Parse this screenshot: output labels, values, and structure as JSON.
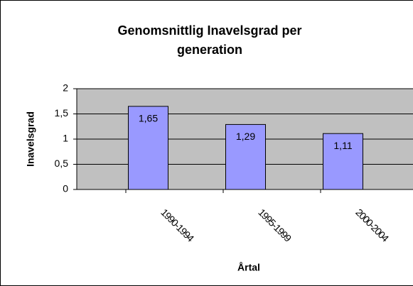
{
  "chart_data": {
    "type": "bar",
    "title": "Genomsnittlig Inavelsgrad per generation",
    "x_label": "Årtal",
    "y_label": "Inavelsgrad",
    "categories": [
      "1990-1994",
      "1995-1999",
      "2000-2004"
    ],
    "values": [
      1.65,
      1.29,
      1.11
    ],
    "value_labels": [
      "1,65",
      "1,29",
      "1,11"
    ],
    "color": "#9999ff",
    "ylim": [
      0,
      2
    ],
    "yticks": [
      0,
      {
        "value": 0.5,
        "label": "0,5"
      },
      1,
      {
        "value": 1.5,
        "label": "1,5"
      },
      2
    ],
    "grid": true
  }
}
